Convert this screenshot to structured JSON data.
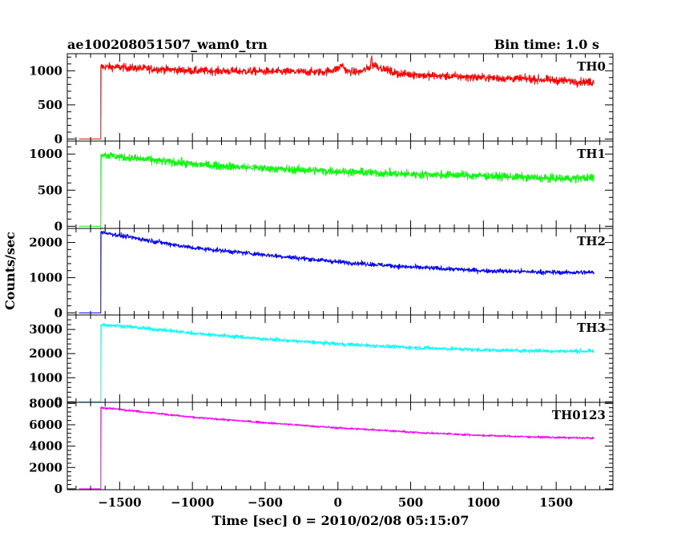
{
  "header": {
    "title": "ae100208051507_wam0_trn",
    "bin_time": "Bin time: 1.0 s"
  },
  "chart_data": {
    "type": "line",
    "title": "ae100208051507_wam0_trn",
    "xlabel": "Time [sec] 0 = 2010/02/08 05:15:07",
    "ylabel": "Counts/sec",
    "xlim": [
      -1860,
      1890
    ],
    "x_ticks": [
      -1500,
      -1000,
      -500,
      0,
      500,
      1000,
      1500
    ],
    "x_tick_labels": [
      "−1500",
      "−1000",
      "−500",
      "0",
      "500",
      "1000",
      "1500"
    ],
    "grid": false,
    "legend": "none",
    "series": [
      {
        "name": "TH0",
        "color": "#ff0000",
        "ylim": [
          -30,
          1250
        ],
        "y_ticks": [
          0,
          500,
          1000
        ],
        "y_tick_labels": [
          "0",
          "500",
          "1000"
        ],
        "noise": 40,
        "points": [
          [
            -1780,
            0
          ],
          [
            -1630,
            0
          ],
          [
            -1630,
            1060
          ],
          [
            -1500,
            1050
          ],
          [
            -1000,
            1000
          ],
          [
            -500,
            990
          ],
          [
            -100,
            980
          ],
          [
            0,
            1030
          ],
          [
            30,
            1090
          ],
          [
            60,
            990
          ],
          [
            150,
            980
          ],
          [
            200,
            1030
          ],
          [
            250,
            1090
          ],
          [
            300,
            1040
          ],
          [
            400,
            960
          ],
          [
            600,
            930
          ],
          [
            1000,
            900
          ],
          [
            1400,
            870
          ],
          [
            1760,
            830
          ]
        ]
      },
      {
        "name": "TH1",
        "color": "#00ff00",
        "ylim": [
          -30,
          1180
        ],
        "y_ticks": [
          0,
          500,
          1000
        ],
        "y_tick_labels": [
          "0",
          "500",
          "1000"
        ],
        "noise": 38,
        "points": [
          [
            -1780,
            0
          ],
          [
            -1630,
            0
          ],
          [
            -1630,
            1000
          ],
          [
            -1500,
            960
          ],
          [
            -1000,
            860
          ],
          [
            -500,
            800
          ],
          [
            0,
            760
          ],
          [
            500,
            720
          ],
          [
            1000,
            700
          ],
          [
            1500,
            660
          ],
          [
            1760,
            670
          ]
        ]
      },
      {
        "name": "TH2",
        "color": "#0000ff",
        "ylim": [
          -60,
          2400
        ],
        "y_ticks": [
          0,
          1000,
          2000
        ],
        "y_tick_labels": [
          "0",
          "1000",
          "2000"
        ],
        "noise": 45,
        "points": [
          [
            -1780,
            0
          ],
          [
            -1630,
            0
          ],
          [
            -1630,
            2300
          ],
          [
            -1500,
            2200
          ],
          [
            -1000,
            1850
          ],
          [
            -500,
            1650
          ],
          [
            0,
            1450
          ],
          [
            500,
            1300
          ],
          [
            1000,
            1200
          ],
          [
            1500,
            1150
          ],
          [
            1760,
            1150
          ]
        ]
      },
      {
        "name": "TH3",
        "color": "#00ffff",
        "ylim": [
          -20,
          3600
        ],
        "y_ticks": [
          0,
          1000,
          2000,
          3000
        ],
        "y_tick_labels": [
          "0",
          "1000",
          "2000",
          "3000"
        ],
        "noise": 55,
        "points": [
          [
            -1780,
            0
          ],
          [
            -1630,
            0
          ],
          [
            -1630,
            3200
          ],
          [
            -1500,
            3150
          ],
          [
            -1000,
            2850
          ],
          [
            -500,
            2600
          ],
          [
            0,
            2400
          ],
          [
            500,
            2250
          ],
          [
            1000,
            2150
          ],
          [
            1500,
            2100
          ],
          [
            1760,
            2100
          ]
        ]
      },
      {
        "name": "TH0123",
        "color": "#ff00ff",
        "ylim": [
          -80,
          8100
        ],
        "y_ticks": [
          0,
          2000,
          4000,
          6000,
          8000
        ],
        "y_tick_labels": [
          "0",
          "2000",
          "4000",
          "6000",
          "8000"
        ],
        "noise": 70,
        "points": [
          [
            -1780,
            0
          ],
          [
            -1630,
            0
          ],
          [
            -1630,
            7600
          ],
          [
            -1500,
            7450
          ],
          [
            -1000,
            6700
          ],
          [
            -500,
            6200
          ],
          [
            0,
            5700
          ],
          [
            300,
            5500
          ],
          [
            500,
            5300
          ],
          [
            1000,
            5000
          ],
          [
            1500,
            4800
          ],
          [
            1760,
            4750
          ]
        ]
      }
    ]
  }
}
